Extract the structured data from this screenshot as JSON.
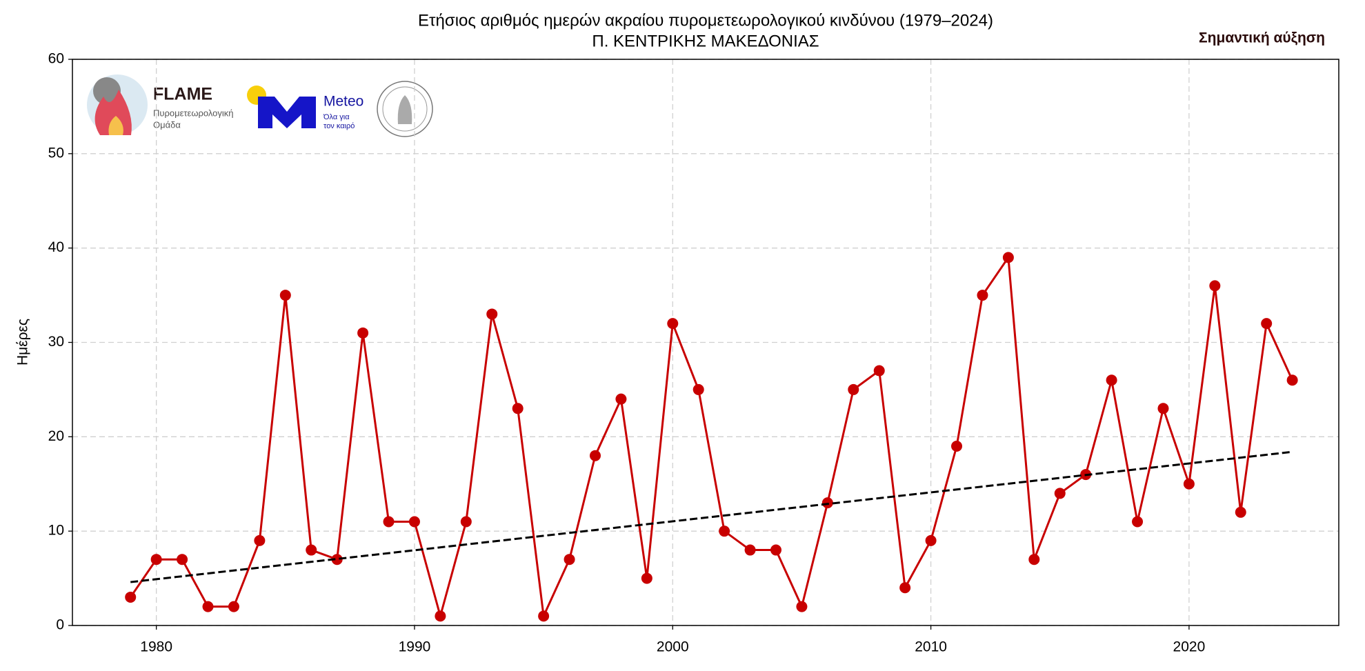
{
  "chart_data": {
    "type": "line",
    "title": "Ετήσιος αριθμός ημερών ακραίου πυρομετεωρολογικού κινδύνου (1979–2024)",
    "subtitle": "Π. ΚΕΝΤΡΙΚΗΣ ΜΑΚΕΔΟΝΙΑΣ",
    "ylabel": "Ημέρες",
    "annotation": "Σημαντική αύξηση",
    "x": [
      1979,
      1980,
      1981,
      1982,
      1983,
      1984,
      1985,
      1986,
      1987,
      1988,
      1989,
      1990,
      1991,
      1992,
      1993,
      1994,
      1995,
      1996,
      1997,
      1998,
      1999,
      2000,
      2001,
      2002,
      2003,
      2004,
      2005,
      2006,
      2007,
      2008,
      2009,
      2010,
      2011,
      2012,
      2013,
      2014,
      2015,
      2016,
      2017,
      2018,
      2019,
      2020,
      2021,
      2022,
      2023,
      2024
    ],
    "series": [
      {
        "color": "#c80000",
        "values": [
          3,
          7,
          7,
          2,
          2,
          9,
          35,
          8,
          7,
          31,
          11,
          11,
          1,
          11,
          33,
          23,
          1,
          7,
          18,
          24,
          5,
          32,
          25,
          10,
          8,
          8,
          2,
          13,
          25,
          27,
          4,
          9,
          19,
          35,
          39,
          7,
          14,
          16,
          26,
          11,
          23,
          15,
          36,
          12,
          32,
          26
        ]
      }
    ],
    "trend": {
      "x": [
        1979,
        2024
      ],
      "values": [
        4.6,
        18.4
      ],
      "color": "#000000"
    },
    "xlim": [
      1976.75,
      2025.8
    ],
    "ylim": [
      0,
      60
    ],
    "xticks": [
      1980,
      1990,
      2000,
      2010,
      2020
    ],
    "yticks": [
      0,
      10,
      20,
      30,
      40,
      50,
      60
    ],
    "grid": true
  },
  "logos": {
    "flame": "FLAME",
    "flame_sub1": "Πυρομετεωρολογική",
    "flame_sub2": "Ομάδα",
    "meteo": "Meteo",
    "meteo_sub1": "Όλα για",
    "meteo_sub2": "τον καιρό"
  }
}
